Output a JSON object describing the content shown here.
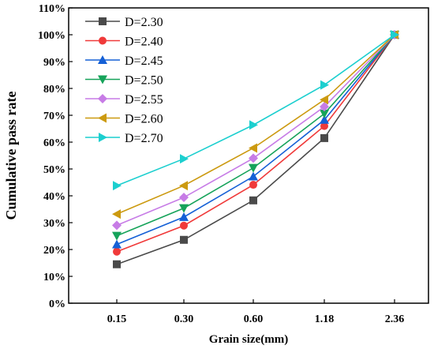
{
  "chart_data": {
    "type": "line",
    "title": "",
    "xlabel": "Grain size(mm)",
    "ylabel": "Cumulative pass rate",
    "x": [
      "0.15",
      "0.30",
      "0.60",
      "1.18",
      "2.36"
    ],
    "ylim": [
      0,
      110
    ],
    "yticks": [
      "0%",
      "10%",
      "20%",
      "30%",
      "40%",
      "50%",
      "60%",
      "70%",
      "80%",
      "90%",
      "100%",
      "110%"
    ],
    "legend_position": "top-left",
    "grid": false,
    "series": [
      {
        "name": "D=2.30",
        "color": "#4a4a4a",
        "marker": "square",
        "values": [
          14.5,
          23.6,
          38.3,
          61.5,
          100
        ]
      },
      {
        "name": "D=2.40",
        "color": "#f03a3a",
        "marker": "circle",
        "values": [
          19.2,
          28.9,
          44.1,
          66.0,
          100
        ]
      },
      {
        "name": "D=2.45",
        "color": "#1560d6",
        "marker": "triangle-up",
        "values": [
          21.9,
          32.1,
          47.2,
          68.3,
          100
        ]
      },
      {
        "name": "D=2.50",
        "color": "#16a35a",
        "marker": "triangle-down",
        "values": [
          25.1,
          35.4,
          50.4,
          70.6,
          100
        ]
      },
      {
        "name": "D=2.55",
        "color": "#c77ce6",
        "marker": "diamond",
        "values": [
          29.0,
          39.4,
          54.0,
          73.2,
          100
        ]
      },
      {
        "name": "D=2.60",
        "color": "#cc9a10",
        "marker": "triangle-left",
        "values": [
          33.2,
          43.8,
          57.8,
          75.8,
          100
        ]
      },
      {
        "name": "D=2.70",
        "color": "#1ccfcf",
        "marker": "triangle-right",
        "values": [
          43.8,
          53.8,
          66.4,
          81.3,
          100
        ]
      }
    ]
  }
}
